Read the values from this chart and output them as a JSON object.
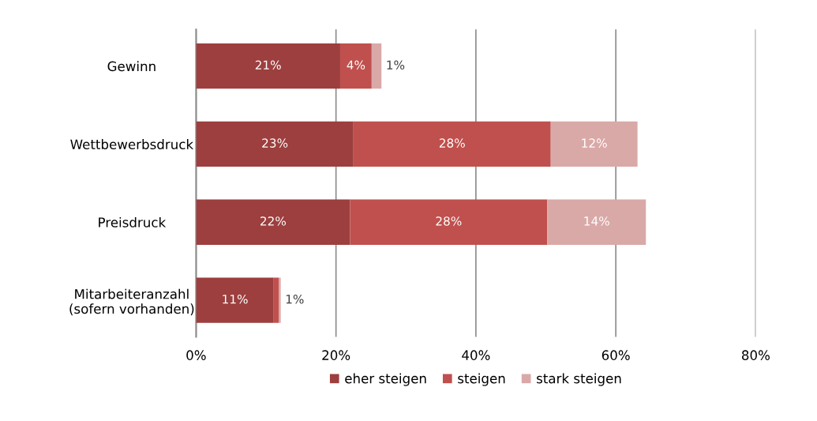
{
  "chart_data": {
    "type": "bar",
    "orientation": "horizontal",
    "stacked": true,
    "categories": [
      "Gewinn",
      "Wettbewerbsdruck",
      "Preisdruck",
      "Mitarbeiteranzahl\n(sofern vorhanden)"
    ],
    "series": [
      {
        "name": "eher steigen",
        "color": "#9c3f3e",
        "values": [
          20.6,
          22.5,
          22.0,
          11.1
        ],
        "value_labels": [
          "21%",
          "23%",
          "22%",
          "11%"
        ]
      },
      {
        "name": "steigen",
        "color": "#c0504d",
        "values": [
          4.5,
          28.2,
          28.2,
          0.7
        ],
        "value_labels": [
          "4%",
          "28%",
          "28%",
          "1%"
        ]
      },
      {
        "name": "stark steigen",
        "color": "#d9a9a8",
        "values": [
          1.4,
          12.4,
          14.1,
          0.3
        ],
        "value_labels": [
          "1%",
          "12%",
          "14%",
          null
        ]
      }
    ],
    "xlim": [
      0,
      80
    ],
    "xticks": [
      {
        "value": 0,
        "label": "0%"
      },
      {
        "value": 20,
        "label": "20%"
      },
      {
        "value": 40,
        "label": "40%"
      },
      {
        "value": 60,
        "label": "60%"
      },
      {
        "value": 80,
        "label": "80%"
      }
    ],
    "grid": "x",
    "legend": "bottom"
  }
}
